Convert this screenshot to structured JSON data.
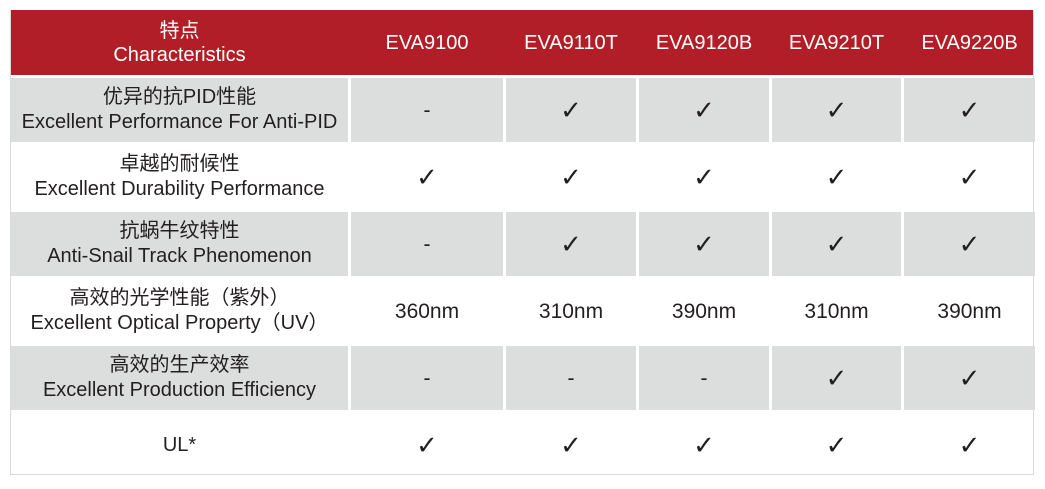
{
  "header": {
    "label_cn": "特点",
    "label_en": "Characteristics",
    "products": [
      "EVA9100",
      "EVA9110T",
      "EVA9120B",
      "EVA9210T",
      "EVA9220B"
    ]
  },
  "colors": {
    "header_bg": "#b21e27",
    "row_gray": "#dcdddd"
  },
  "rows": [
    {
      "cn": "优异的抗PID性能",
      "en": "Excellent Performance For Anti-PID",
      "values": [
        "-",
        "✓",
        "✓",
        "✓",
        "✓"
      ]
    },
    {
      "cn": "卓越的耐候性",
      "en": "Excellent Durability Performance",
      "values": [
        "✓",
        "✓",
        "✓",
        "✓",
        "✓"
      ]
    },
    {
      "cn": "抗蜗牛纹特性",
      "en": "Anti-Snail Track Phenomenon",
      "values": [
        "-",
        "✓",
        "✓",
        "✓",
        "✓"
      ]
    },
    {
      "cn": "高效的光学性能（紫外）",
      "en": "Excellent Optical Property（UV）",
      "values": [
        "360nm",
        "310nm",
        "390nm",
        "310nm",
        "390nm"
      ]
    },
    {
      "cn": "高效的生产效率",
      "en": "Excellent  Production Efficiency",
      "values": [
        "-",
        "-",
        "-",
        "✓",
        "✓"
      ]
    },
    {
      "cn": "",
      "en": "UL*",
      "values": [
        "✓",
        "✓",
        "✓",
        "✓",
        "✓"
      ]
    }
  ]
}
